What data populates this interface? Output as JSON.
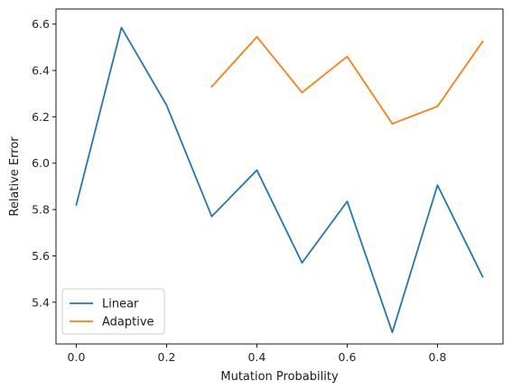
{
  "chart_data": {
    "type": "line",
    "title": "",
    "xlabel": "Mutation Probability",
    "ylabel": "Relative Error",
    "xlim": [
      -0.045,
      0.945
    ],
    "ylim": [
      5.22,
      6.665
    ],
    "xticks": [
      0.0,
      0.2,
      0.4,
      0.6,
      0.8
    ],
    "xtick_labels": [
      "0.0",
      "0.2",
      "0.4",
      "0.6",
      "0.8"
    ],
    "yticks": [
      5.4,
      5.6,
      5.8,
      6.0,
      6.2,
      6.4,
      6.6
    ],
    "ytick_labels": [
      "5.4",
      "5.6",
      "5.8",
      "6.0",
      "6.2",
      "6.4",
      "6.6"
    ],
    "grid": false,
    "legend_position": "lower-left",
    "series": [
      {
        "name": "Linear",
        "color": "#1f77b4",
        "x": [
          0.0,
          0.1,
          0.2,
          0.3,
          0.4,
          0.5,
          0.6,
          0.7,
          0.8,
          0.9
        ],
        "y": [
          5.82,
          6.585,
          6.25,
          5.77,
          5.97,
          5.57,
          5.835,
          5.27,
          5.905,
          5.51
        ]
      },
      {
        "name": "Adaptive",
        "color": "#ff7f0e",
        "x": [
          0.3,
          0.4,
          0.5,
          0.6,
          0.7,
          0.8,
          0.9
        ],
        "y": [
          6.33,
          6.545,
          6.305,
          6.46,
          6.17,
          6.245,
          6.525
        ]
      }
    ]
  }
}
